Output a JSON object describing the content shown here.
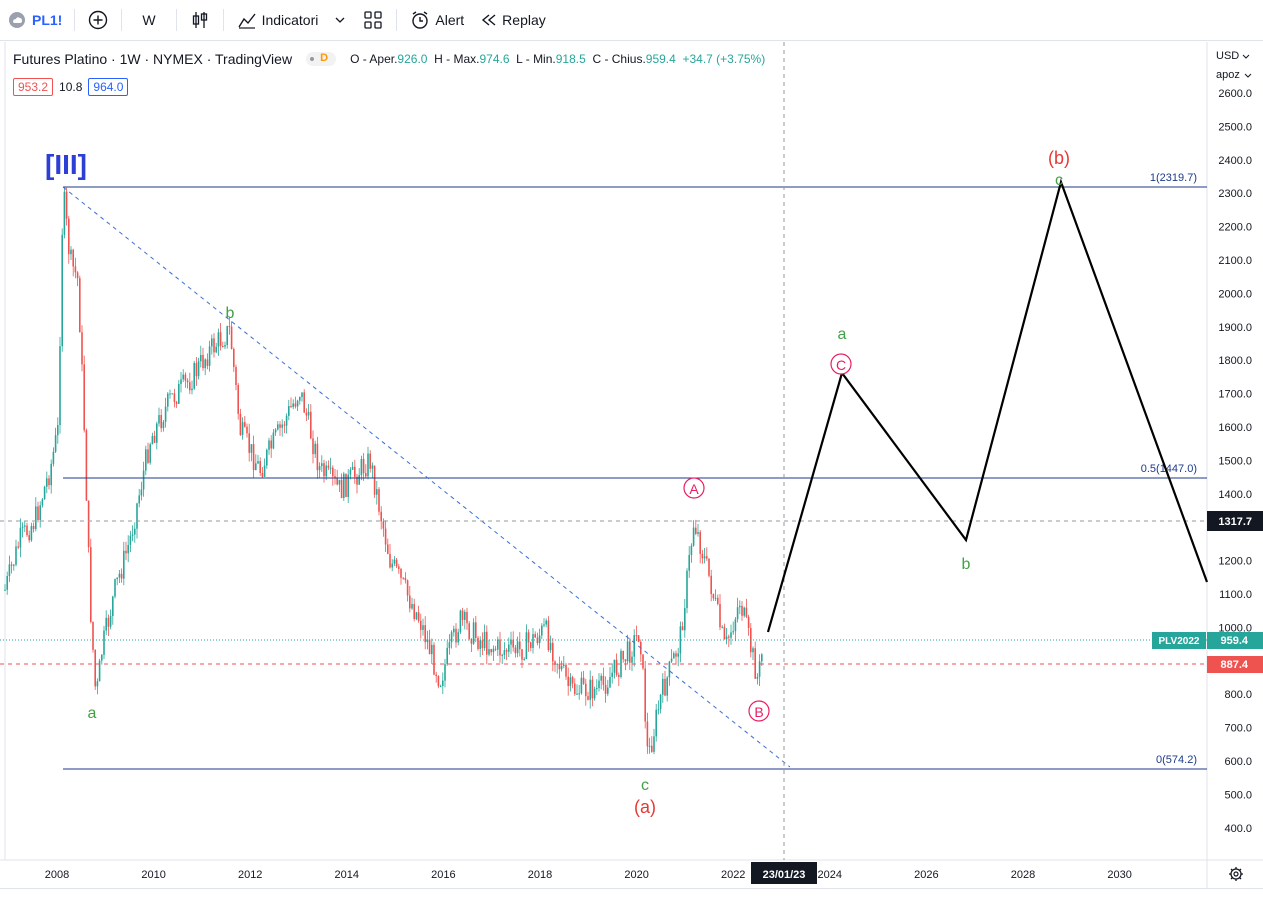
{
  "toolbar": {
    "symbol": "PL1!",
    "interval": "W",
    "indicators_label": "Indicatori",
    "alert_label": "Alert",
    "replay_label": "Replay"
  },
  "legend": {
    "title": "Futures Platino · 1W · NYMEX · TradingView",
    "badge": "D",
    "open_label": "O - Aper.",
    "open": "926.0",
    "high_label": "H - Max.",
    "high": "974.6",
    "low_label": "L - Min.",
    "low": "918.5",
    "close_label": "C - Chius.",
    "close": "959.4",
    "change": "+34.7 (+3.75%)",
    "bid": "953.2",
    "spread": "10.8",
    "ask": "964.0"
  },
  "price_axis": {
    "currency": "USD",
    "mode": "apoz",
    "ticks": [
      "2600.0",
      "2500.0",
      "2400.0",
      "2300.0",
      "2200.0",
      "2100.0",
      "2000.0",
      "1900.0",
      "1800.0",
      "1700.0",
      "1600.0",
      "1500.0",
      "1400.0",
      "1300.0",
      "1200.0",
      "1100.0",
      "1000.0",
      "900.0",
      "800.0",
      "700.0",
      "600.0",
      "500.0",
      "400.0"
    ],
    "label_1317": "1317.7",
    "label_plv": "PLV2022",
    "label_959": "959.4",
    "label_887": "887.4"
  },
  "time_axis": {
    "ticks": [
      "2008",
      "2010",
      "2012",
      "2014",
      "2016",
      "2018",
      "2020",
      "2022",
      "2024",
      "2026",
      "2028",
      "2030"
    ],
    "cursor_date": "23/01/23"
  },
  "fib": {
    "level_1": "1(2319.7)",
    "level_05": "0.5(1447.0)",
    "level_0": "0(574.2)"
  },
  "waves": {
    "III": "[III]",
    "a1": "a",
    "b1": "b",
    "c1": "c",
    "a_paren": "(a)",
    "A_circle": "A",
    "B_circle": "B",
    "C_circle": "C",
    "a2": "a",
    "b2": "b",
    "b_paren": "(b)",
    "c2": "c"
  },
  "colors": {
    "up": "#26a69a",
    "down": "#ef5350",
    "fib": "#1e3a8a",
    "wave_green": "#43a047",
    "wave_red": "#e53935",
    "wave_blue": "#2e3fd6",
    "circle_pink": "#e91e63"
  }
}
